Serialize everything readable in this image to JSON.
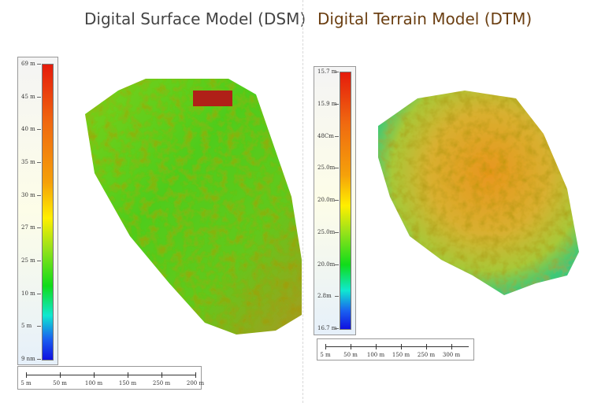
{
  "dsm": {
    "title": "Digital Surface Model (DSM)",
    "legend_labels": [
      "69 m",
      "45 m",
      "40 m",
      "35 m",
      "30 m",
      "27 m",
      "25 m",
      "10 m",
      "5 m",
      "9 nm"
    ],
    "scale_labels": [
      "5 m",
      "50 m",
      "100 m",
      "150 m",
      "250 m",
      "200 m"
    ]
  },
  "dtm": {
    "title": "Digital Terrain Model (DTM)",
    "legend_labels": [
      "15.7 m",
      "15.9 m",
      "48Cm",
      "25.0m",
      "20.0m",
      "25.0m",
      "20.0m",
      "2.8m",
      "16.7 m"
    ],
    "scale_labels": [
      "5 m",
      "50 m",
      "100 m",
      "150 m",
      "250 m",
      "300 m"
    ]
  },
  "colors": {
    "dsm_title": "#444444",
    "dtm_title": "#6b3f12",
    "ramp_high": "#e51b0c",
    "ramp_mid": "#ffef00",
    "ramp_low": "#1010e0"
  }
}
